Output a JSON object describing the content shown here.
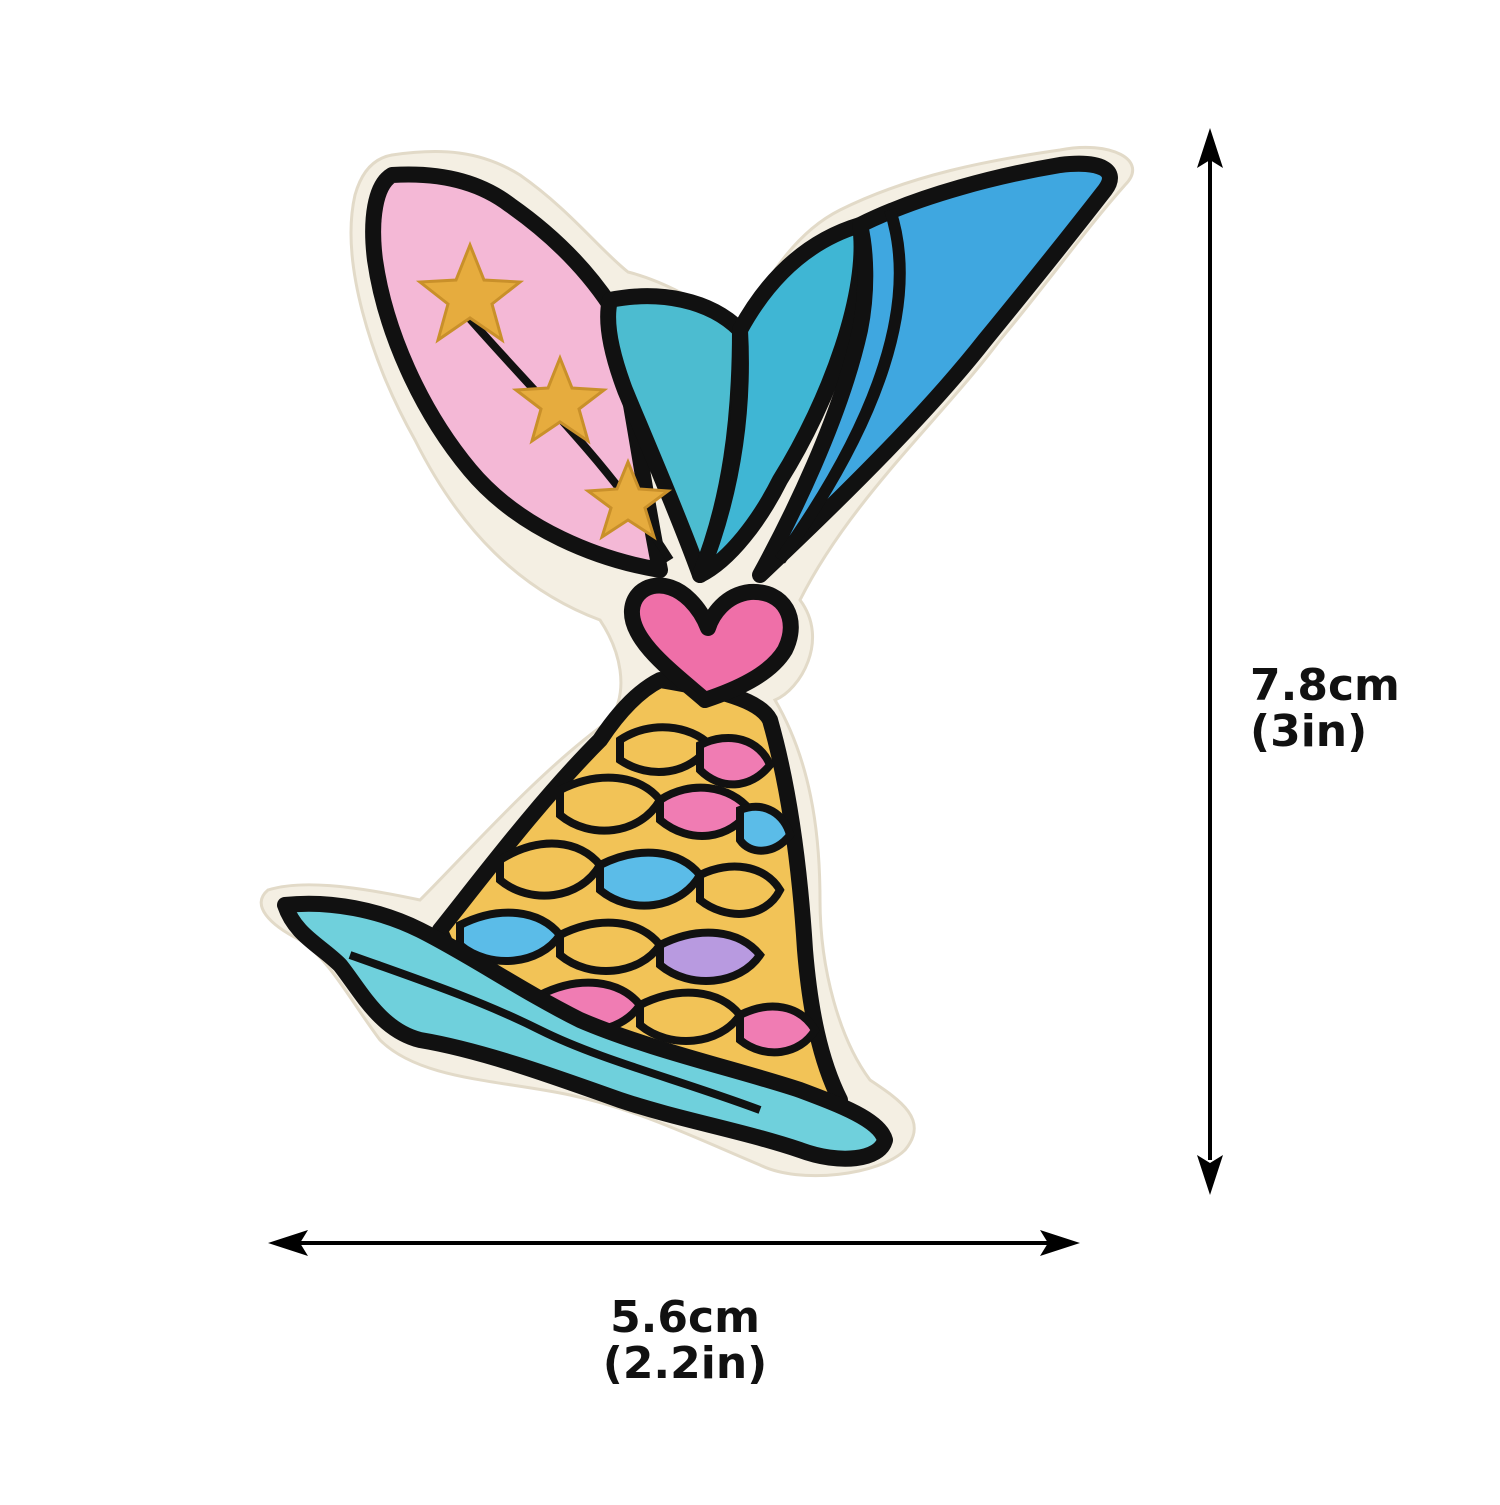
{
  "dimensions": {
    "width_label": "5.6cm",
    "width_label_imperial": "(2.2in)",
    "height_label": "7.8cm",
    "height_label_imperial": "(3in)"
  },
  "colors": {
    "background": "#ffffff",
    "arrow": "#000000",
    "outline": "#111111",
    "patch_border": "#efe9dc",
    "fin_pink": "#f4b8d6",
    "fin_teal": "#4cbcd0",
    "fin_blue": "#3fa7e0",
    "star_gold": "#e6ac3e",
    "heart_pink": "#ef6fa8",
    "scale_yellow": "#f2c357",
    "scale_pink": "#f07cb3",
    "scale_blue": "#5bbce8",
    "scale_purple": "#b89ae0",
    "wave_teal": "#6fd0dc"
  },
  "icons": [
    "mermaid-tail-patch",
    "horizontal-double-arrow",
    "vertical-double-arrow",
    "star-icon",
    "heart-icon"
  ]
}
